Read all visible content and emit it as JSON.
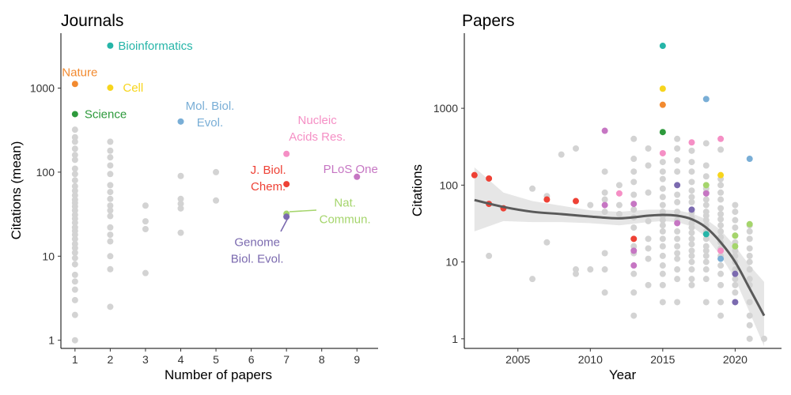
{
  "colors": {
    "grey_point": "#d3d3d3",
    "smooth_line": "#5a5a5a",
    "smooth_band": "#e6e6e6"
  },
  "chart_data": [
    {
      "type": "scatter",
      "title": "Journals",
      "xlabel": "Number of papers",
      "ylabel": "Citations (mean)",
      "x_ticks": [
        "1",
        "2",
        "3",
        "4",
        "5",
        "6",
        "7",
        "8",
        "9"
      ],
      "y_ticks": [
        "1",
        "10",
        "100",
        "1000"
      ],
      "xlim": [
        0.6,
        9.6
      ],
      "ylim": [
        0.8,
        4500
      ],
      "y_scale": "log",
      "grid": false,
      "background_points": {
        "color": "#d3d3d3",
        "points": [
          [
            1,
            320
          ],
          [
            1,
            260
          ],
          [
            1,
            230
          ],
          [
            1,
            190
          ],
          [
            1,
            160
          ],
          [
            1,
            140
          ],
          [
            1,
            110
          ],
          [
            1,
            95
          ],
          [
            1,
            80
          ],
          [
            1,
            68
          ],
          [
            1,
            60
          ],
          [
            1,
            53
          ],
          [
            1,
            47
          ],
          [
            1,
            43
          ],
          [
            1,
            39
          ],
          [
            1,
            35
          ],
          [
            1,
            31
          ],
          [
            1,
            28
          ],
          [
            1,
            25
          ],
          [
            1,
            22
          ],
          [
            1,
            20
          ],
          [
            1,
            18
          ],
          [
            1,
            16
          ],
          [
            1,
            14
          ],
          [
            1,
            12.5
          ],
          [
            1,
            11
          ],
          [
            1,
            9.5
          ],
          [
            1,
            8
          ],
          [
            1,
            6
          ],
          [
            1,
            5
          ],
          [
            1,
            4
          ],
          [
            1,
            3
          ],
          [
            1,
            2
          ],
          [
            1,
            1
          ],
          [
            2,
            230
          ],
          [
            2,
            180
          ],
          [
            2,
            150
          ],
          [
            2,
            120
          ],
          [
            2,
            95
          ],
          [
            2,
            70
          ],
          [
            2,
            58
          ],
          [
            2,
            48
          ],
          [
            2,
            40
          ],
          [
            2,
            35
          ],
          [
            2,
            30
          ],
          [
            2,
            22
          ],
          [
            2,
            18
          ],
          [
            2,
            15
          ],
          [
            2,
            10
          ],
          [
            2,
            7
          ],
          [
            2,
            2.5
          ],
          [
            3,
            40
          ],
          [
            3,
            26
          ],
          [
            3,
            21
          ],
          [
            3,
            6.3
          ],
          [
            4,
            90
          ],
          [
            4,
            48
          ],
          [
            4,
            42
          ],
          [
            4,
            37
          ],
          [
            4,
            19
          ],
          [
            5,
            100
          ],
          [
            5,
            46
          ]
        ]
      },
      "highlights": [
        {
          "label": "Bioinformatics",
          "x": 2,
          "y": 3200,
          "color": "#26b5a8"
        },
        {
          "label": "Nature",
          "x": 1,
          "y": 1120,
          "color": "#f28a30"
        },
        {
          "label": "Cell",
          "x": 2,
          "y": 1010,
          "color": "#f7d51d"
        },
        {
          "label": "Science",
          "x": 1,
          "y": 490,
          "color": "#2e9a3c"
        },
        {
          "label": "Mol. Biol.\nEvol.",
          "x": 4,
          "y": 400,
          "color": "#79aed6"
        },
        {
          "label": "Nucleic\nAcids Res.",
          "x": 7,
          "y": 165,
          "color": "#f58fc5"
        },
        {
          "label": "PLoS One",
          "x": 9,
          "y": 88,
          "color": "#c676c3"
        },
        {
          "label": "J. Biol.\nChem.",
          "x": 7,
          "y": 72,
          "color": "#ee4135"
        },
        {
          "label": "Nat.\nCommun.",
          "x": 7,
          "y": 32,
          "color": "#a5d56c"
        },
        {
          "label": "Genome\nBiol. Evol.",
          "x": 7,
          "y": 29.5,
          "color": "#7b6aaf"
        }
      ]
    },
    {
      "type": "scatter",
      "title": "Papers",
      "xlabel": "Year",
      "ylabel": "Citations",
      "x_ticks": [
        "2005",
        "2010",
        "2015",
        "2020"
      ],
      "y_ticks": [
        "1",
        "10",
        "100",
        "1000"
      ],
      "xlim": [
        2001.3,
        2023.2
      ],
      "ylim": [
        0.75,
        9500
      ],
      "y_scale": "log",
      "grid": false,
      "background_points": {
        "color": "#d3d3d3",
        "points": [
          [
            2003,
            12
          ],
          [
            2006,
            90
          ],
          [
            2006,
            6
          ],
          [
            2007,
            18
          ],
          [
            2007,
            72
          ],
          [
            2008,
            250
          ],
          [
            2009,
            300
          ],
          [
            2009,
            8
          ],
          [
            2009,
            7
          ],
          [
            2010,
            8
          ],
          [
            2010,
            55
          ],
          [
            2011,
            150
          ],
          [
            2011,
            80
          ],
          [
            2011,
            65
          ],
          [
            2011,
            45
          ],
          [
            2011,
            13
          ],
          [
            2011,
            8
          ],
          [
            2011,
            4
          ],
          [
            2012,
            100
          ],
          [
            2012,
            55
          ],
          [
            2012,
            42
          ],
          [
            2013,
            400
          ],
          [
            2013,
            220
          ],
          [
            2013,
            150
          ],
          [
            2013,
            110
          ],
          [
            2013,
            75
          ],
          [
            2013,
            48
          ],
          [
            2013,
            38
          ],
          [
            2013,
            28
          ],
          [
            2013,
            16
          ],
          [
            2013,
            13
          ],
          [
            2013,
            7
          ],
          [
            2013,
            4
          ],
          [
            2013,
            2
          ],
          [
            2014,
            300
          ],
          [
            2014,
            180
          ],
          [
            2014,
            80
          ],
          [
            2014,
            34
          ],
          [
            2014,
            20
          ],
          [
            2014,
            15
          ],
          [
            2014,
            11
          ],
          [
            2014,
            5
          ],
          [
            2015,
            200
          ],
          [
            2015,
            150
          ],
          [
            2015,
            120
          ],
          [
            2015,
            90
          ],
          [
            2015,
            70
          ],
          [
            2015,
            55
          ],
          [
            2015,
            45
          ],
          [
            2015,
            40
          ],
          [
            2015,
            35
          ],
          [
            2015,
            30
          ],
          [
            2015,
            25
          ],
          [
            2015,
            20
          ],
          [
            2015,
            16
          ],
          [
            2015,
            12
          ],
          [
            2015,
            9
          ],
          [
            2015,
            7
          ],
          [
            2015,
            5
          ],
          [
            2015,
            3
          ],
          [
            2016,
            400
          ],
          [
            2016,
            300
          ],
          [
            2016,
            210
          ],
          [
            2016,
            150
          ],
          [
            2016,
            75
          ],
          [
            2016,
            60
          ],
          [
            2016,
            45
          ],
          [
            2016,
            35
          ],
          [
            2016,
            25
          ],
          [
            2016,
            20
          ],
          [
            2016,
            16
          ],
          [
            2016,
            13
          ],
          [
            2016,
            11
          ],
          [
            2016,
            8
          ],
          [
            2016,
            6
          ],
          [
            2016,
            3
          ],
          [
            2017,
            280
          ],
          [
            2017,
            200
          ],
          [
            2017,
            150
          ],
          [
            2017,
            110
          ],
          [
            2017,
            85
          ],
          [
            2017,
            70
          ],
          [
            2017,
            60
          ],
          [
            2017,
            44
          ],
          [
            2017,
            38
          ],
          [
            2017,
            32
          ],
          [
            2017,
            28
          ],
          [
            2017,
            24
          ],
          [
            2017,
            20
          ],
          [
            2017,
            17
          ],
          [
            2017,
            14
          ],
          [
            2017,
            12
          ],
          [
            2017,
            10
          ],
          [
            2017,
            8
          ],
          [
            2017,
            6
          ],
          [
            2017,
            5
          ],
          [
            2018,
            350
          ],
          [
            2018,
            180
          ],
          [
            2018,
            130
          ],
          [
            2018,
            90
          ],
          [
            2018,
            80
          ],
          [
            2018,
            65
          ],
          [
            2018,
            55
          ],
          [
            2018,
            45
          ],
          [
            2018,
            40
          ],
          [
            2018,
            35
          ],
          [
            2018,
            30
          ],
          [
            2018,
            25
          ],
          [
            2018,
            20
          ],
          [
            2018,
            16
          ],
          [
            2018,
            14
          ],
          [
            2018,
            12
          ],
          [
            2018,
            10
          ],
          [
            2018,
            8
          ],
          [
            2018,
            6
          ],
          [
            2018,
            3
          ],
          [
            2019,
            290
          ],
          [
            2019,
            120
          ],
          [
            2019,
            100
          ],
          [
            2019,
            80
          ],
          [
            2019,
            65
          ],
          [
            2019,
            50
          ],
          [
            2019,
            42
          ],
          [
            2019,
            36
          ],
          [
            2019,
            30
          ],
          [
            2019,
            25
          ],
          [
            2019,
            21
          ],
          [
            2019,
            18
          ],
          [
            2019,
            15
          ],
          [
            2019,
            12
          ],
          [
            2019,
            9
          ],
          [
            2019,
            7
          ],
          [
            2019,
            5
          ],
          [
            2019,
            3
          ],
          [
            2019,
            2
          ],
          [
            2020,
            55
          ],
          [
            2020,
            45
          ],
          [
            2020,
            35
          ],
          [
            2020,
            28
          ],
          [
            2020,
            22
          ],
          [
            2020,
            18
          ],
          [
            2020,
            14
          ],
          [
            2020,
            12
          ],
          [
            2020,
            10
          ],
          [
            2020,
            8
          ],
          [
            2020,
            6
          ],
          [
            2020,
            5
          ],
          [
            2020,
            4
          ],
          [
            2021,
            30
          ],
          [
            2021,
            25
          ],
          [
            2021,
            20
          ],
          [
            2021,
            15
          ],
          [
            2021,
            12
          ],
          [
            2021,
            10
          ],
          [
            2021,
            8
          ],
          [
            2021,
            6
          ],
          [
            2021,
            5
          ],
          [
            2021,
            3
          ],
          [
            2021,
            2
          ],
          [
            2021,
            1.5
          ],
          [
            2021,
            1
          ],
          [
            2022,
            1
          ]
        ]
      },
      "colored_points": [
        {
          "x": 2002,
          "y": 135,
          "color": "#ee4135"
        },
        {
          "x": 2003,
          "y": 122,
          "color": "#ee4135"
        },
        {
          "x": 2003,
          "y": 57,
          "color": "#ee4135"
        },
        {
          "x": 2004,
          "y": 50,
          "color": "#ee4135"
        },
        {
          "x": 2007,
          "y": 65,
          "color": "#ee4135"
        },
        {
          "x": 2009,
          "y": 62,
          "color": "#ee4135"
        },
        {
          "x": 2011,
          "y": 510,
          "color": "#c676c3"
        },
        {
          "x": 2011,
          "y": 55,
          "color": "#c676c3"
        },
        {
          "x": 2012,
          "y": 78,
          "color": "#f58fc5"
        },
        {
          "x": 2013,
          "y": 57,
          "color": "#c676c3"
        },
        {
          "x": 2013,
          "y": 20,
          "color": "#ee4135"
        },
        {
          "x": 2013,
          "y": 14,
          "color": "#c676c3"
        },
        {
          "x": 2013,
          "y": 9,
          "color": "#c676c3"
        },
        {
          "x": 2015,
          "y": 6500,
          "color": "#26b5a8"
        },
        {
          "x": 2015,
          "y": 1800,
          "color": "#f7d51d"
        },
        {
          "x": 2015,
          "y": 1110,
          "color": "#f28a30"
        },
        {
          "x": 2015,
          "y": 490,
          "color": "#2e9a3c"
        },
        {
          "x": 2015,
          "y": 260,
          "color": "#f58fc5"
        },
        {
          "x": 2016,
          "y": 100,
          "color": "#7b6aaf"
        },
        {
          "x": 2016,
          "y": 32,
          "color": "#c676c3"
        },
        {
          "x": 2017,
          "y": 360,
          "color": "#f58fc5"
        },
        {
          "x": 2017,
          "y": 48,
          "color": "#7b6aaf"
        },
        {
          "x": 2018,
          "y": 1320,
          "color": "#79aed6"
        },
        {
          "x": 2018,
          "y": 100,
          "color": "#a5d56c"
        },
        {
          "x": 2018,
          "y": 78,
          "color": "#c676c3"
        },
        {
          "x": 2018,
          "y": 23,
          "color": "#26b5a8"
        },
        {
          "x": 2019,
          "y": 400,
          "color": "#f58fc5"
        },
        {
          "x": 2019,
          "y": 135,
          "color": "#f7d51d"
        },
        {
          "x": 2019,
          "y": 14,
          "color": "#f58fc5"
        },
        {
          "x": 2019,
          "y": 11,
          "color": "#79aed6"
        },
        {
          "x": 2020,
          "y": 22,
          "color": "#a5d56c"
        },
        {
          "x": 2020,
          "y": 16,
          "color": "#a5d56c"
        },
        {
          "x": 2020,
          "y": 7,
          "color": "#7b6aaf"
        },
        {
          "x": 2020,
          "y": 3,
          "color": "#7b6aaf"
        },
        {
          "x": 2021,
          "y": 220,
          "color": "#79aed6"
        },
        {
          "x": 2021,
          "y": 31,
          "color": "#a5d56c"
        }
      ],
      "smooth_fit": {
        "x": [
          2002,
          2004,
          2006,
          2008,
          2010,
          2012,
          2014,
          2015,
          2016,
          2017,
          2018,
          2019,
          2020,
          2021,
          2022
        ],
        "y": [
          64,
          52,
          45,
          42,
          39,
          37,
          40,
          41,
          40,
          36,
          28,
          18,
          10,
          4.5,
          2
        ],
        "lower": [
          25,
          34,
          33,
          33,
          32,
          30,
          33,
          34,
          33,
          29,
          21,
          12,
          6,
          2.2,
          0.8
        ],
        "upper": [
          170,
          80,
          62,
          54,
          47,
          45,
          48,
          48,
          47,
          43,
          36,
          26,
          16,
          9,
          5.5
        ]
      }
    }
  ]
}
